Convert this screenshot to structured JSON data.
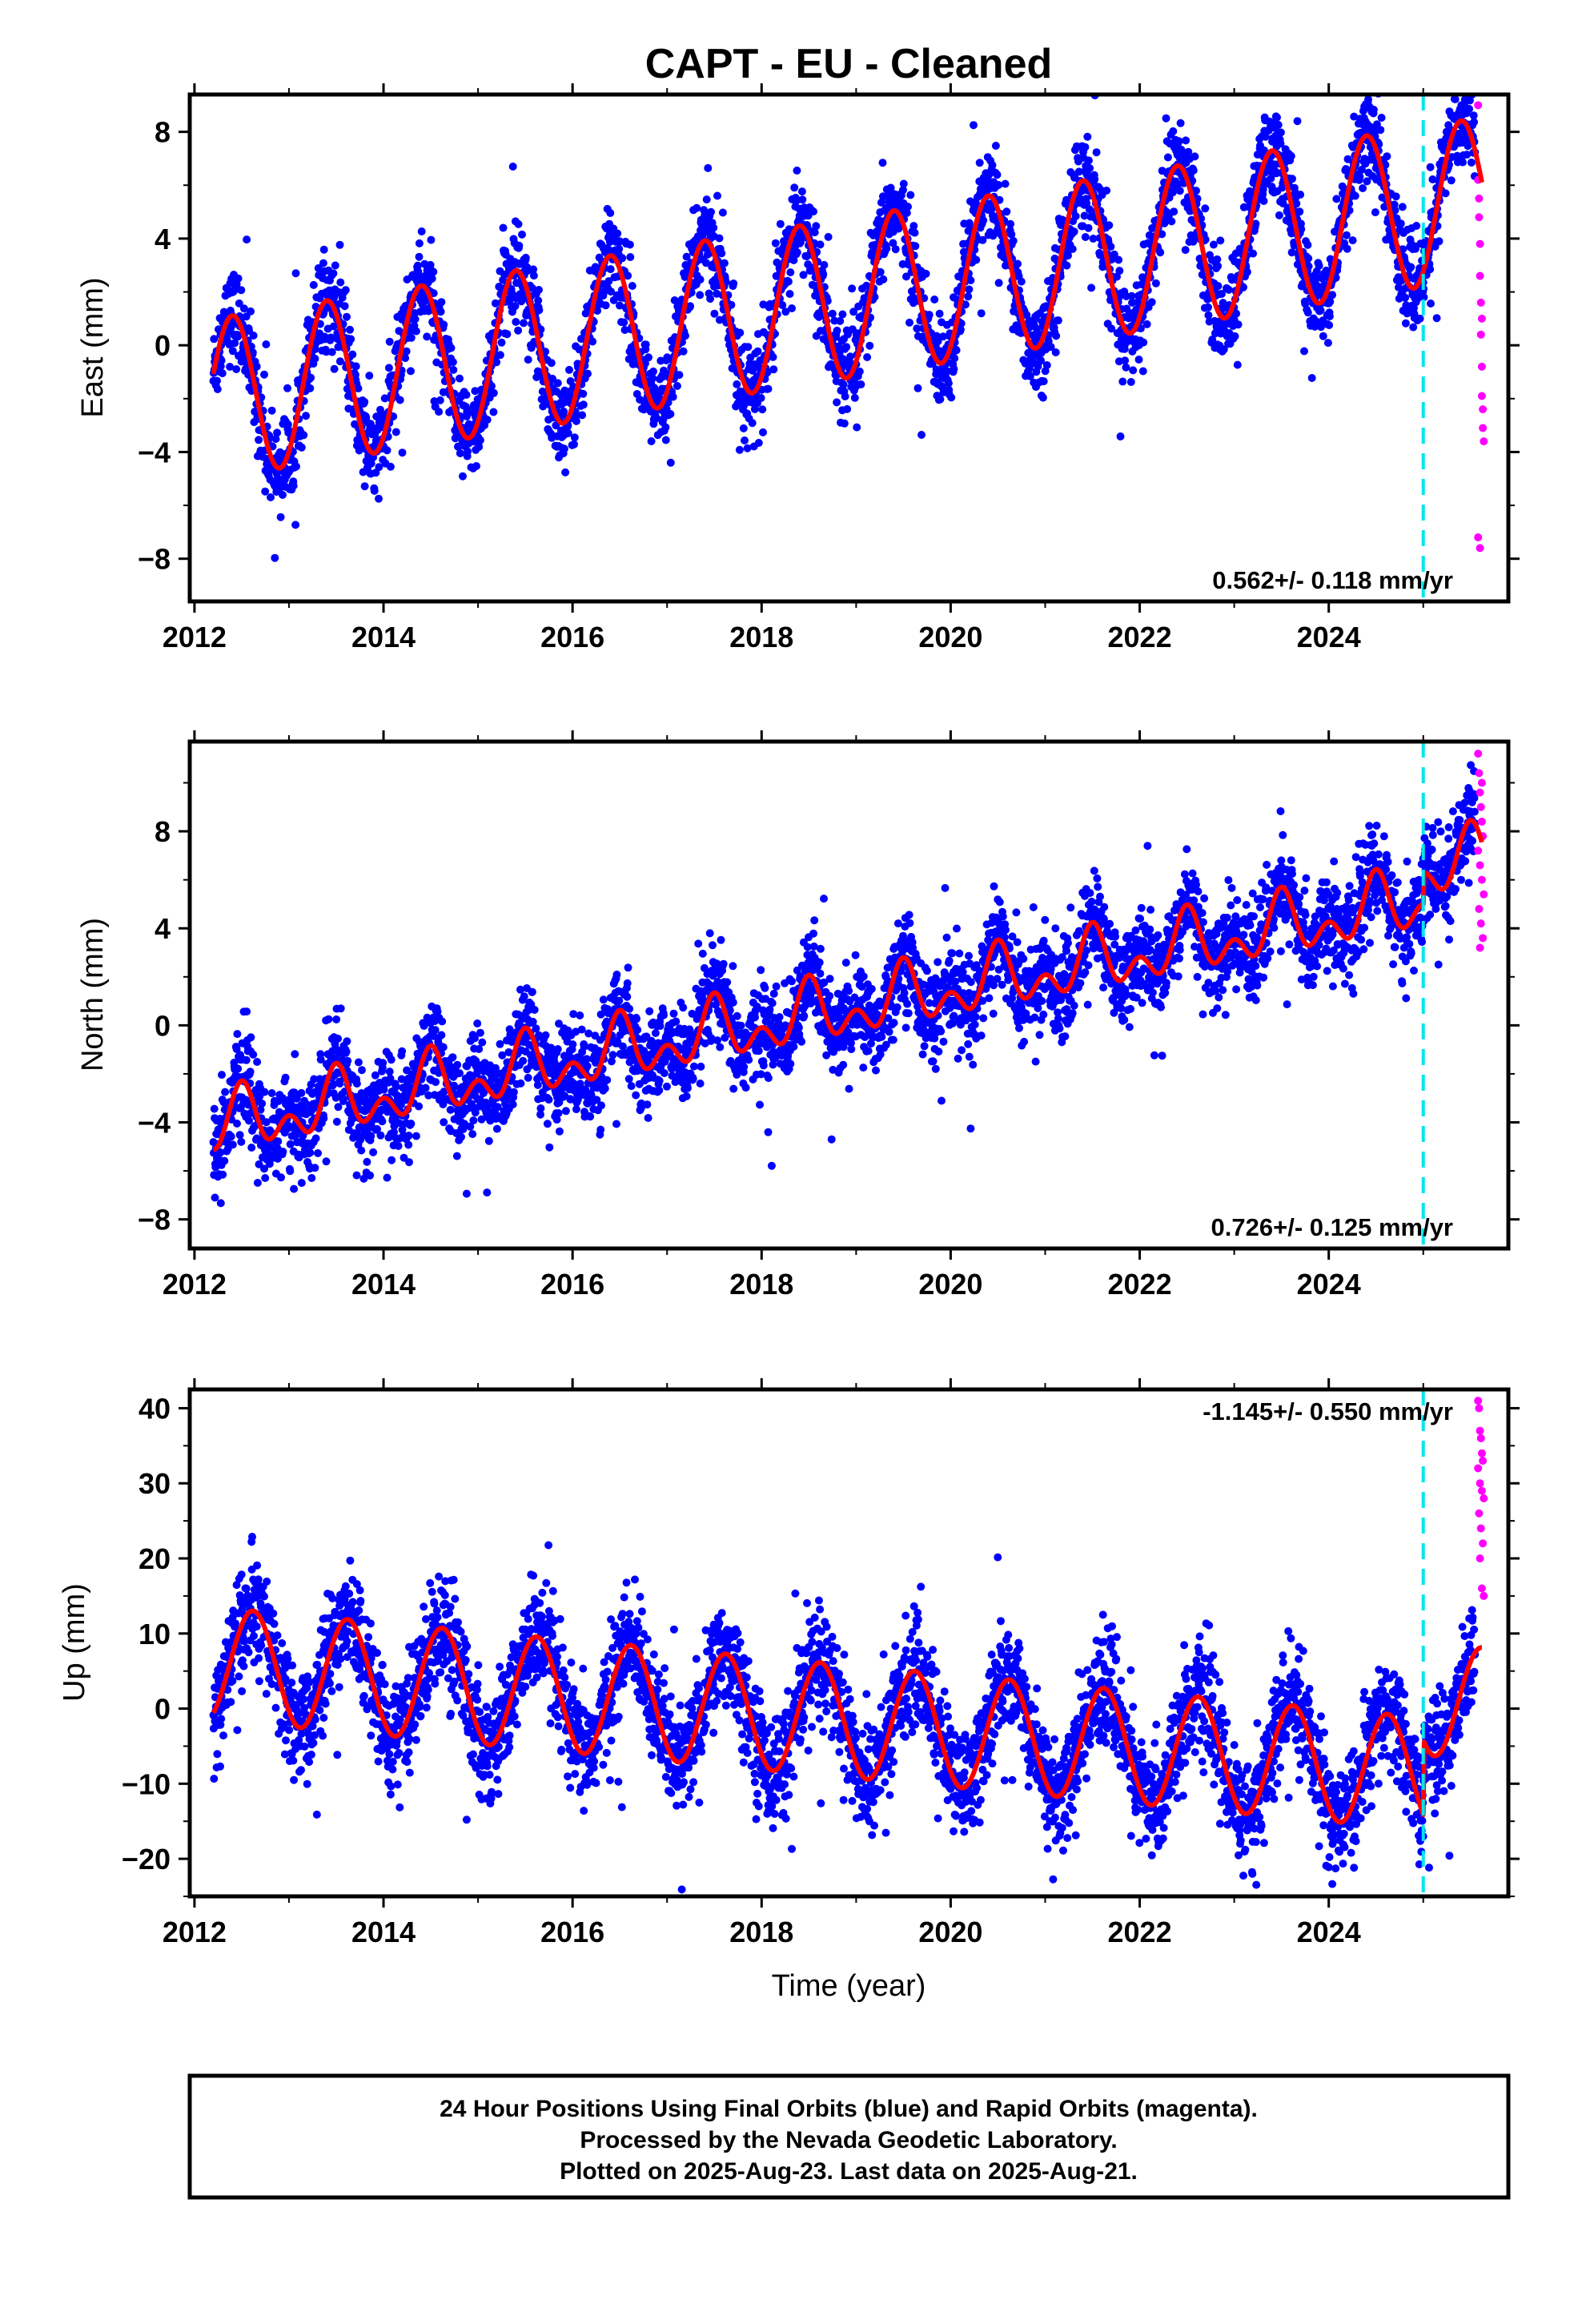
{
  "title": "CAPT  - EU - Cleaned",
  "colors": {
    "final_orbits": "#0000ff",
    "rapid_orbits": "#ff00ff",
    "model_fit": "#ff0000",
    "reference_line": "#00e5ee",
    "frame": "#000000"
  },
  "chart_data": [
    {
      "type": "scatter",
      "ylabel": "East (mm)",
      "xlabel": "",
      "xlim": [
        2011.95,
        2025.9
      ],
      "ylim": [
        -9.6,
        9.4
      ],
      "x_ticks": [
        2012,
        2014,
        2016,
        2018,
        2020,
        2022,
        2024
      ],
      "x_tick_labels": [
        "2012",
        "2014",
        "2016",
        "2018",
        "2020",
        "2022",
        "2024"
      ],
      "y_ticks": [
        -8,
        -4,
        0,
        4,
        8
      ],
      "y_tick_labels": [
        "−8",
        "−4",
        "0",
        "4",
        "8"
      ],
      "rate_text": "0.562+/- 0.118 mm/yr",
      "rate_position": "bottom-right",
      "reference_line_x": 2025.0,
      "grid": false,
      "series": [
        {
          "role": "model_fit",
          "intercept": -2.0,
          "trend": 0.562,
          "seasonal": [
            {
              "period": 1.0,
              "amplitude": 3.0,
              "peak": 2012.4
            }
          ],
          "x_range": [
            2012.2,
            2025.62
          ],
          "step_x": 2025.0,
          "step_offset": 0.0
        },
        {
          "role": "final_orbits",
          "x_range": [
            2012.2,
            2025.55
          ],
          "scatter_sd": 0.85,
          "outlier_fraction": 0.02
        },
        {
          "role": "rapid_orbits",
          "x": [
            2025.58,
            2025.58,
            2025.59,
            2025.59,
            2025.6,
            2025.6,
            2025.61,
            2025.61,
            2025.62,
            2025.62,
            2025.63,
            2025.63,
            2025.64,
            2025.58,
            2025.6,
            2025.62
          ],
          "y": [
            9.0,
            6.2,
            5.5,
            4.8,
            3.8,
            2.6,
            1.6,
            0.4,
            -0.8,
            -1.9,
            -2.4,
            -3.1,
            -3.6,
            -7.2,
            -7.6,
            1.0
          ]
        }
      ]
    },
    {
      "type": "scatter",
      "ylabel": "North (mm)",
      "xlabel": "",
      "xlim": [
        2011.95,
        2025.9
      ],
      "ylim": [
        -9.2,
        11.7
      ],
      "x_ticks": [
        2012,
        2014,
        2016,
        2018,
        2020,
        2022,
        2024
      ],
      "x_tick_labels": [
        "2012",
        "2014",
        "2016",
        "2018",
        "2020",
        "2022",
        "2024"
      ],
      "y_ticks": [
        -8,
        -4,
        0,
        4,
        8
      ],
      "y_tick_labels": [
        "−8",
        "−4",
        "0",
        "4",
        "8"
      ],
      "rate_text": "0.726+/- 0.125 mm/yr",
      "rate_position": "bottom-right",
      "reference_line_x": 2025.0,
      "grid": false,
      "series": [
        {
          "role": "model_fit",
          "intercept": -4.2,
          "trend": 0.726,
          "seasonal": [
            {
              "period": 1.0,
              "amplitude": 0.9,
              "peak": 2012.5
            },
            {
              "period": 0.5,
              "amplitude": 0.8,
              "peak": 2012.5
            }
          ],
          "x_range": [
            2012.2,
            2025.62
          ],
          "step_x": 2025.0,
          "step_offset": 1.3
        },
        {
          "role": "final_orbits",
          "x_range": [
            2012.2,
            2025.55
          ],
          "scatter_sd": 0.95,
          "outlier_fraction": 0.02
        },
        {
          "role": "rapid_orbits",
          "x": [
            2025.58,
            2025.59,
            2025.6,
            2025.61,
            2025.62,
            2025.63,
            2025.58,
            2025.6,
            2025.62,
            2025.64,
            2025.59,
            2025.61,
            2025.63,
            2025.6,
            2025.62
          ],
          "y": [
            11.2,
            10.4,
            9.6,
            9.0,
            8.4,
            7.8,
            7.2,
            6.6,
            6.0,
            5.4,
            4.8,
            4.2,
            3.6,
            3.2,
            10.0
          ]
        }
      ]
    },
    {
      "type": "scatter",
      "ylabel": "Up (mm)",
      "xlabel": "Time (year)",
      "xlim": [
        2011.95,
        2025.9
      ],
      "ylim": [
        -25,
        42.5
      ],
      "x_ticks": [
        2012,
        2014,
        2016,
        2018,
        2020,
        2022,
        2024
      ],
      "x_tick_labels": [
        "2012",
        "2014",
        "2016",
        "2018",
        "2020",
        "2022",
        "2024"
      ],
      "y_ticks": [
        -20,
        -10,
        0,
        10,
        20,
        30,
        40
      ],
      "y_tick_labels": [
        "−20",
        "−10",
        "0",
        "10",
        "20",
        "30",
        "40"
      ],
      "rate_text": "-1.145+/- 0.550 mm/yr",
      "rate_position": "top-right",
      "reference_line_x": 2025.0,
      "grid": false,
      "series": [
        {
          "role": "model_fit",
          "intercept": 6.0,
          "trend": -1.145,
          "seasonal": [
            {
              "period": 1.0,
              "amplitude": 7.5,
              "peak": 2012.62
            }
          ],
          "x_range": [
            2012.2,
            2025.62
          ],
          "step_x": 2025.0,
          "step_offset": 10.0
        },
        {
          "role": "final_orbits",
          "x_range": [
            2012.2,
            2025.55
          ],
          "scatter_sd": 3.6,
          "outlier_fraction": 0.02
        },
        {
          "role": "rapid_orbits",
          "x": [
            2025.58,
            2025.59,
            2025.6,
            2025.61,
            2025.62,
            2025.63,
            2025.58,
            2025.6,
            2025.62,
            2025.64,
            2025.59,
            2025.61,
            2025.63,
            2025.6,
            2025.62,
            2025.64
          ],
          "y": [
            41,
            40,
            37,
            36,
            34,
            33,
            32,
            30,
            29,
            28,
            26,
            24,
            22,
            20,
            16,
            15
          ]
        }
      ]
    }
  ],
  "footer": {
    "line1": "24 Hour Positions Using Final Orbits (blue) and Rapid Orbits (magenta).",
    "line2": "Processed by the Nevada Geodetic Laboratory.",
    "line3": "Plotted on 2025-Aug-23. Last data on 2025-Aug-21."
  }
}
